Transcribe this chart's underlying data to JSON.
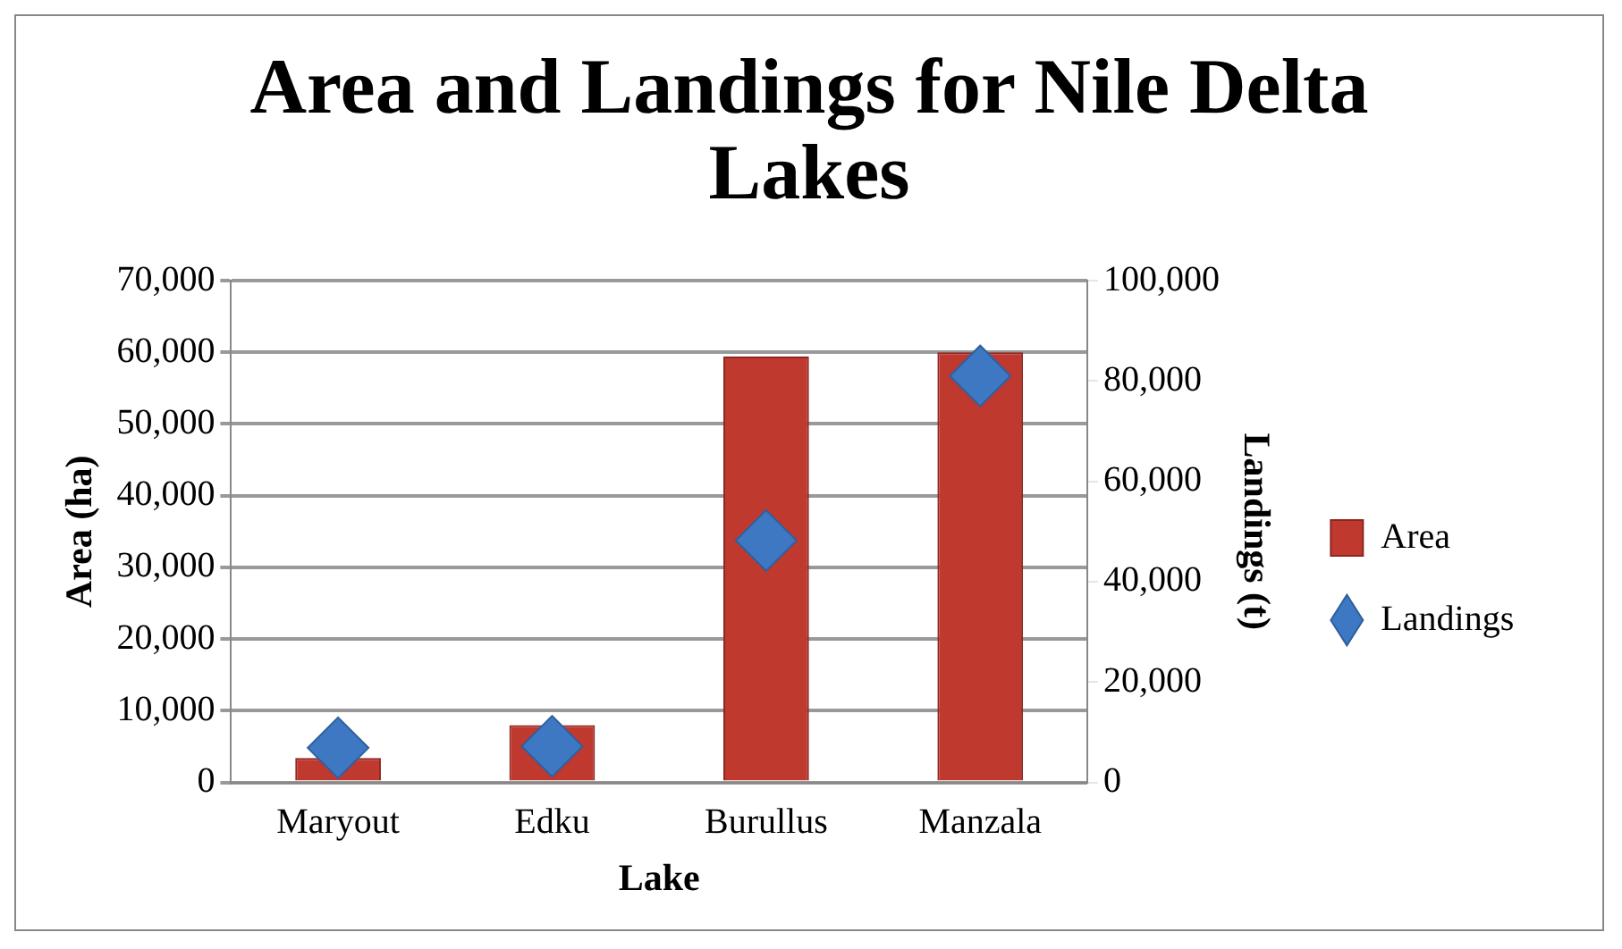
{
  "chart_data": {
    "type": "bar",
    "title": "Area and Landings for Nile Delta Lakes",
    "xlabel": "Lake",
    "ylabel": "Area (ha)",
    "y2label": "Landings (t)",
    "categories": [
      "Maryout",
      "Edku",
      "Burullus",
      "Manzala"
    ],
    "series": [
      {
        "name": "Area",
        "color": "#c0392f",
        "values": [
          3400,
          8000,
          59400,
          60000
        ]
      },
      {
        "name": "Landings",
        "type": "scatter",
        "axis": "y2",
        "color": "#3e78c2",
        "values": [
          6900,
          7200,
          48200,
          81000
        ]
      }
    ],
    "ylim": [
      0,
      70000
    ],
    "yticks": [
      0,
      {
        "value": 10000,
        "label": "10,000"
      },
      {
        "value": 20000,
        "label": "20,000"
      },
      {
        "value": 30000,
        "label": "30,000"
      },
      {
        "value": 40000,
        "label": "40,000"
      },
      {
        "value": 50000,
        "label": "50,000"
      },
      {
        "value": 60000,
        "label": "60,000"
      },
      {
        "value": 70000,
        "label": "70,000"
      }
    ],
    "y2lim": [
      0,
      100000
    ],
    "y2ticks": [
      0,
      {
        "value": 20000,
        "label": "20,000"
      },
      {
        "value": 40000,
        "label": "40,000"
      },
      {
        "value": 60000,
        "label": "60,000"
      },
      {
        "value": 80000,
        "label": "80,000"
      },
      {
        "value": 100000,
        "label": "100,000"
      }
    ],
    "grid": "y",
    "legend": "right",
    "marker": "diamond"
  }
}
